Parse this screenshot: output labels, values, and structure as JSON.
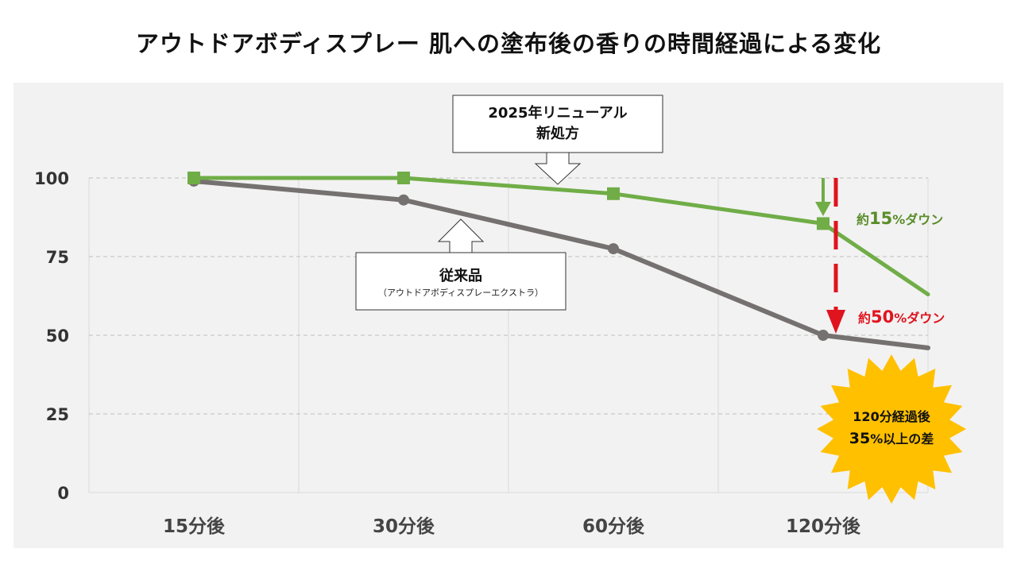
{
  "title": "アウトドアボディスプレー 肌への塗布後の香りの時間経過による変化",
  "chart_data": {
    "type": "line",
    "categories": [
      "15分後",
      "30分後",
      "60分後",
      "120分後"
    ],
    "ylim": [
      0,
      100
    ],
    "yticks": [
      0,
      25,
      50,
      75,
      100
    ],
    "grid": true,
    "series": [
      {
        "name": "2025年リニューアル 新処方",
        "color": "#70ad47",
        "values": [
          100,
          100,
          95,
          85.5
        ],
        "tail_value": 63
      },
      {
        "name": "従来品",
        "color": "#767171",
        "values": [
          99,
          93,
          77.5,
          50
        ],
        "tail_value": 46
      }
    ]
  },
  "callouts": {
    "new_formula_line1": "2025年リニューアル",
    "new_formula_line2": "新処方",
    "old_product_name": "従来品",
    "old_product_sub": "（アウトドアボディスプレーエクストラ）"
  },
  "annotations": {
    "green_prefix": "約",
    "green_value": "15",
    "green_suffix": "%ダウン",
    "red_prefix": "約",
    "red_value": "50",
    "red_suffix": "%ダウン",
    "burst_line1": "120分経過後",
    "burst_line2_value": "35",
    "burst_line2_suffix": "%以上の差"
  },
  "colors": {
    "new_formula": "#70ad47",
    "conventional": "#767171",
    "red_arrow": "#e0141e",
    "burst": "#ffc000",
    "plot_background": "#f2f2f2"
  }
}
